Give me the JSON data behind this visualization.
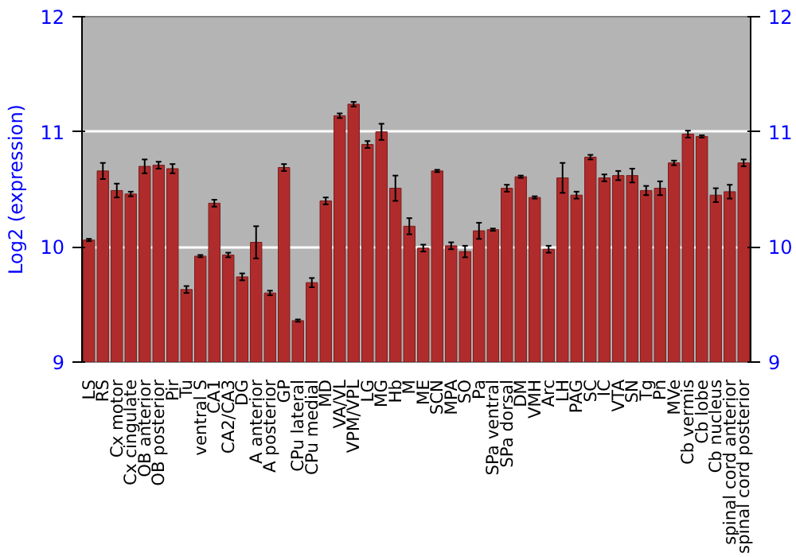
{
  "chart_data": {
    "type": "bar",
    "ylabel": "Log2 (expression)",
    "categories": [
      "LS",
      "RS",
      "Cx motor",
      "Cx cingulate",
      "OB anterior",
      "OB posterior",
      "Pir",
      "Tu",
      "ventral S",
      "CA1",
      "CA2/CA3",
      "DG",
      "A anterior",
      "A posterior",
      "GP",
      "CPu lateral",
      "CPu medial",
      "MD",
      "VA/VL",
      "VPM/VPL",
      "LG",
      "MG",
      "Hb",
      "M",
      "ME",
      "SCN",
      "MPA",
      "SO",
      "Pa",
      "SPa ventral",
      "SPa dorsal",
      "DM",
      "VMH",
      "Arc",
      "LH",
      "PAG",
      "SC",
      "IC",
      "VTA",
      "SN",
      "Tg",
      "Pn",
      "MVe",
      "Cb vermis",
      "Cb lobe",
      "Cb nucleus",
      "spinal cord anterior",
      "spinal cord posterior"
    ],
    "values": [
      10.06,
      10.66,
      10.49,
      10.46,
      10.7,
      10.71,
      10.68,
      9.63,
      9.92,
      10.38,
      9.93,
      9.74,
      10.04,
      9.6,
      10.69,
      9.36,
      9.69,
      10.4,
      11.14,
      11.24,
      10.89,
      11.0,
      10.51,
      10.18,
      9.99,
      10.66,
      10.01,
      9.96,
      10.14,
      10.15,
      10.51,
      10.61,
      10.43,
      9.98,
      10.6,
      10.45,
      10.78,
      10.6,
      10.62,
      10.62,
      10.49,
      10.51,
      10.73,
      10.98,
      10.96,
      10.45,
      10.48,
      10.73
    ],
    "errors": [
      0.01,
      0.07,
      0.06,
      0.02,
      0.06,
      0.03,
      0.04,
      0.03,
      0.01,
      0.03,
      0.02,
      0.03,
      0.14,
      0.02,
      0.03,
      0.01,
      0.04,
      0.03,
      0.02,
      0.02,
      0.03,
      0.07,
      0.11,
      0.07,
      0.03,
      0.01,
      0.03,
      0.05,
      0.07,
      0.01,
      0.03,
      0.01,
      0.01,
      0.03,
      0.13,
      0.03,
      0.02,
      0.03,
      0.04,
      0.06,
      0.04,
      0.06,
      0.02,
      0.03,
      0.01,
      0.06,
      0.06,
      0.03
    ],
    "color": "#b02c2c",
    "ylim": [
      9,
      12
    ],
    "yticks": [
      9,
      10,
      11,
      12
    ],
    "y2lim": [
      9,
      12
    ],
    "y2ticks": [
      9,
      10,
      11,
      12
    ],
    "grid": "y"
  }
}
